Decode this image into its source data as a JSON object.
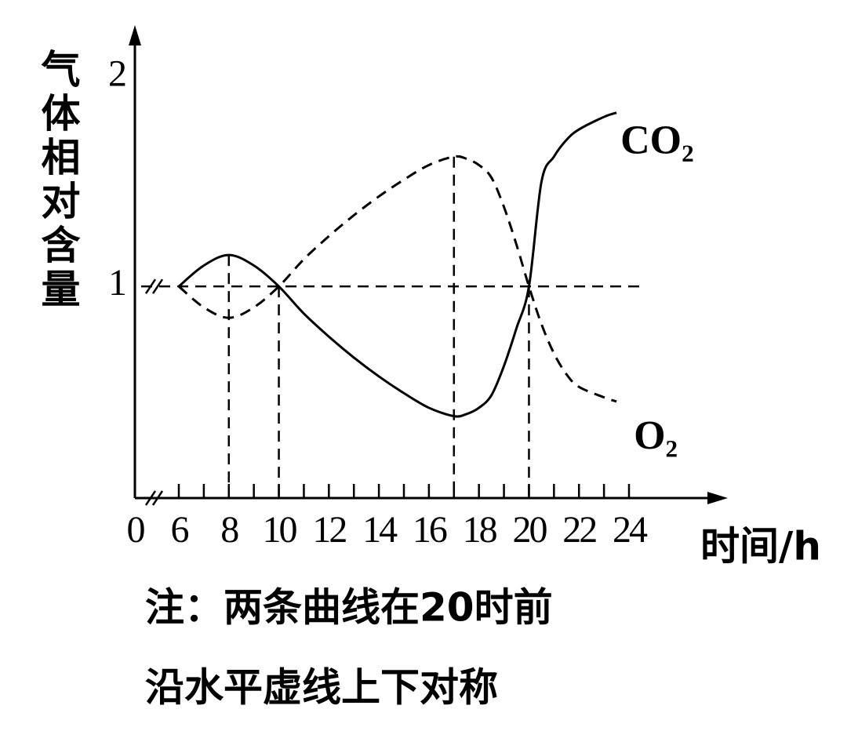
{
  "chart_data": {
    "type": "line",
    "ylabel": "气体相对含量",
    "xlabel": "时间/h",
    "notes": [
      "注：两条曲线在20时前",
      "沿水平虚线上下对称"
    ],
    "xlim": [
      0,
      27.7
    ],
    "ylim": [
      0,
      2.2
    ],
    "xticks": [
      0,
      6,
      8,
      10,
      12,
      14,
      16,
      18,
      20,
      22,
      24
    ],
    "xminorticks": [
      6,
      7,
      8,
      9,
      10,
      11,
      12,
      13,
      14,
      15,
      16,
      17,
      18,
      19,
      20,
      21,
      22,
      23,
      24
    ],
    "yticks": [
      1,
      2
    ],
    "axis_break": true,
    "hline": 1,
    "vlines": [
      8,
      10,
      17,
      20
    ],
    "x": [
      6,
      7,
      8,
      9,
      10,
      11,
      12,
      13,
      14,
      15,
      16,
      17,
      17.5,
      18,
      18.5,
      19,
      19.5,
      20,
      20.5,
      21,
      21.5,
      22,
      23,
      23.5
    ],
    "series": [
      {
        "name": "CO₂",
        "color": "#000000",
        "dashed": false,
        "values": [
          1.0,
          1.1,
          1.15,
          1.1,
          1.0,
          0.87,
          0.76,
          0.66,
          0.57,
          0.49,
          0.42,
          0.38,
          0.39,
          0.42,
          0.48,
          0.62,
          0.8,
          1.0,
          1.5,
          1.62,
          1.7,
          1.75,
          1.81,
          1.83
        ]
      },
      {
        "name": "O₂",
        "color": "#000000",
        "dashed": true,
        "values": [
          1.0,
          0.9,
          0.85,
          0.9,
          1.0,
          1.13,
          1.24,
          1.34,
          1.43,
          1.51,
          1.58,
          1.62,
          1.61,
          1.58,
          1.52,
          1.38,
          1.2,
          1.0,
          0.82,
          0.68,
          0.58,
          0.52,
          0.47,
          0.45
        ]
      }
    ]
  }
}
